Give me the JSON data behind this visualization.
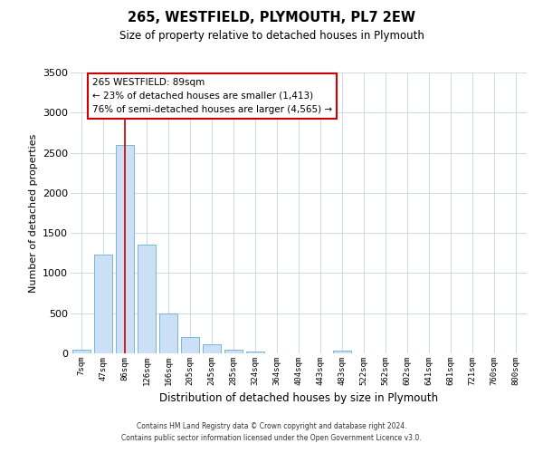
{
  "title": "265, WESTFIELD, PLYMOUTH, PL7 2EW",
  "subtitle": "Size of property relative to detached houses in Plymouth",
  "xlabel": "Distribution of detached houses by size in Plymouth",
  "ylabel": "Number of detached properties",
  "bar_color": "#cce0f5",
  "bar_edge_color": "#6aaad4",
  "categories": [
    "7sqm",
    "47sqm",
    "86sqm",
    "126sqm",
    "166sqm",
    "205sqm",
    "245sqm",
    "285sqm",
    "324sqm",
    "364sqm",
    "404sqm",
    "443sqm",
    "483sqm",
    "522sqm",
    "562sqm",
    "602sqm",
    "641sqm",
    "681sqm",
    "721sqm",
    "760sqm",
    "800sqm"
  ],
  "values": [
    50,
    1230,
    2600,
    1350,
    500,
    200,
    110,
    45,
    20,
    0,
    0,
    0,
    30,
    0,
    0,
    0,
    0,
    0,
    0,
    0,
    0
  ],
  "ylim": [
    0,
    3500
  ],
  "yticks": [
    0,
    500,
    1000,
    1500,
    2000,
    2500,
    3000,
    3500
  ],
  "red_line_index": 2,
  "annotation_title": "265 WESTFIELD: 89sqm",
  "annotation_line1": "← 23% of detached houses are smaller (1,413)",
  "annotation_line2": "76% of semi-detached houses are larger (4,565) →",
  "annotation_box_color": "#ffffff",
  "annotation_box_edge": "#cc0000",
  "red_line_color": "#cc0000",
  "footer_line1": "Contains HM Land Registry data © Crown copyright and database right 2024.",
  "footer_line2": "Contains public sector information licensed under the Open Government Licence v3.0.",
  "bg_color": "#ffffff",
  "grid_color": "#cdd9e5"
}
